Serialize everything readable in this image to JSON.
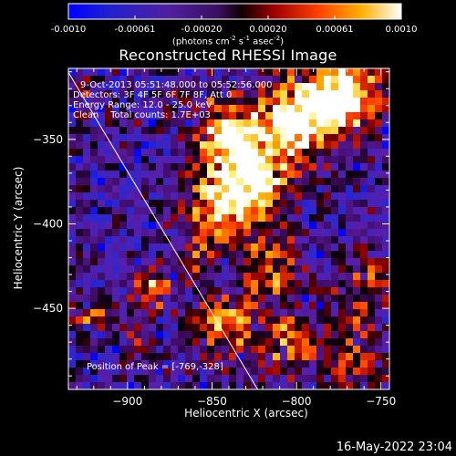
{
  "colorbar": {
    "ticks": [
      "-0.0010",
      "-0.00061",
      "-0.00020",
      "0.00020",
      "0.00061",
      "0.0010"
    ],
    "unit_prefix": "(photons cm",
    "unit_exp1": "-2",
    "unit_mid": " s",
    "unit_exp2": "-1",
    "unit_mid2": " asec",
    "unit_exp3": "-2",
    "unit_suffix": ")"
  },
  "chart_data": {
    "type": "heatmap",
    "title": "Reconstructed RHESSI Image",
    "xlabel": "Heliocentric X (arcsec)",
    "ylabel": "Heliocentric Y (arcsec)",
    "xlim": [
      -935,
      -745
    ],
    "ylim": [
      -498,
      -308
    ],
    "xticks": [
      -900,
      -850,
      -800,
      -750
    ],
    "yticks": [
      -350,
      -400,
      -450
    ],
    "color_range": [
      -0.001,
      0.001
    ],
    "colormap": "rainbow-black-red-yellow-white",
    "limb_line": [
      [
        -937,
        -307
      ],
      [
        -823,
        -498
      ]
    ],
    "peak": [
      -769,
      -328
    ],
    "hot_regions": [
      {
        "x": -770,
        "y": -322,
        "r": 14,
        "v": 0.001
      },
      {
        "x": -790,
        "y": -332,
        "r": 16,
        "v": 0.0008
      },
      {
        "x": -808,
        "y": -345,
        "r": 16,
        "v": 0.0006
      },
      {
        "x": -840,
        "y": -345,
        "r": 14,
        "v": 0.0009
      },
      {
        "x": -835,
        "y": -375,
        "r": 14,
        "v": 0.0008
      },
      {
        "x": -845,
        "y": -395,
        "r": 15,
        "v": 0.0007
      },
      {
        "x": -820,
        "y": -375,
        "r": 12,
        "v": 0.0006
      },
      {
        "x": -815,
        "y": -425,
        "r": 13,
        "v": 0.0006
      },
      {
        "x": -840,
        "y": -460,
        "r": 12,
        "v": 0.0007
      },
      {
        "x": -805,
        "y": -470,
        "r": 13,
        "v": 0.0006
      },
      {
        "x": -765,
        "y": -480,
        "r": 10,
        "v": 0.0006
      },
      {
        "x": -760,
        "y": -435,
        "r": 10,
        "v": 0.0005
      },
      {
        "x": -885,
        "y": -440,
        "r": 8,
        "v": 0.0008
      },
      {
        "x": -920,
        "y": -455,
        "r": 6,
        "v": 0.0006
      },
      {
        "x": -925,
        "y": -330,
        "r": 6,
        "v": 0.0004
      },
      {
        "x": -860,
        "y": -425,
        "r": 8,
        "v": 0.0004
      },
      {
        "x": -895,
        "y": -470,
        "r": 6,
        "v": 0.0004
      },
      {
        "x": -765,
        "y": -455,
        "r": 6,
        "v": 0.0004
      }
    ]
  },
  "annotations": {
    "time_range": "9-Oct-2013 05:51:48.000 to 05:52:56.000",
    "detectors": "Detectors: 3F 4F 5F 6F 7F 8F, Att 0",
    "energy": "Energy Range: 12.0 - 25.0 keV",
    "method": "Clean    Total counts: 1.7E+03",
    "peak_label": "Position of Peak = [-769,-328]"
  },
  "footer": {
    "date": "16-May-2022 23:04"
  }
}
